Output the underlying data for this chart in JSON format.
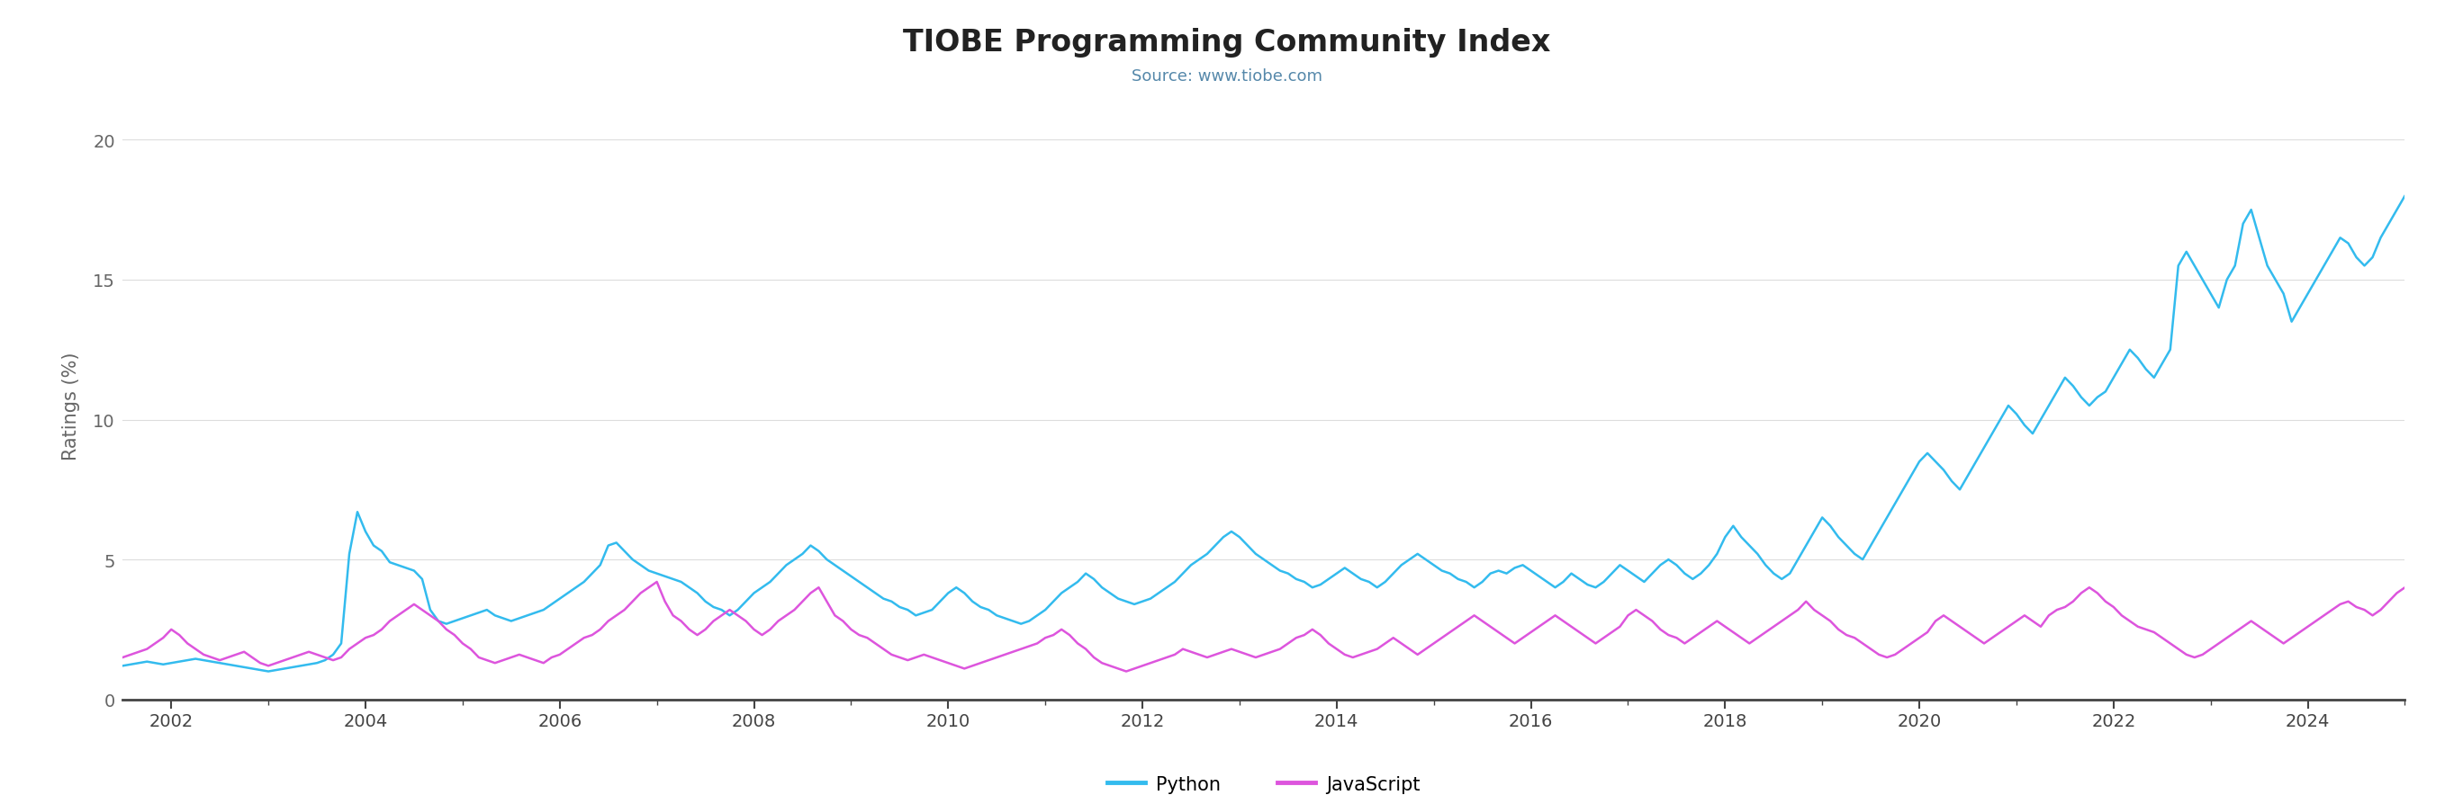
{
  "title": "TIOBE Programming Community Index",
  "subtitle": "Source: www.tiobe.com",
  "ylabel": "Ratings (%)",
  "title_color": "#222222",
  "subtitle_color": "#5588aa",
  "python_color": "#33bbee",
  "javascript_color": "#dd55dd",
  "background_color": "#ffffff",
  "grid_color": "#dddddd",
  "ylim": [
    0,
    21
  ],
  "yticks": [
    0,
    5,
    10,
    15,
    20
  ],
  "start_year": 2001.5,
  "end_year": 2024.75,
  "python_data": [
    1.2,
    1.25,
    1.3,
    1.35,
    1.3,
    1.25,
    1.3,
    1.35,
    1.4,
    1.45,
    1.4,
    1.35,
    1.3,
    1.25,
    1.2,
    1.15,
    1.1,
    1.05,
    1.0,
    1.05,
    1.1,
    1.15,
    1.2,
    1.25,
    1.3,
    1.4,
    1.6,
    2.0,
    5.2,
    6.7,
    6.0,
    5.5,
    5.3,
    4.9,
    4.8,
    4.7,
    4.6,
    4.3,
    3.2,
    2.8,
    2.7,
    2.8,
    2.9,
    3.0,
    3.1,
    3.2,
    3.0,
    2.9,
    2.8,
    2.9,
    3.0,
    3.1,
    3.2,
    3.4,
    3.6,
    3.8,
    4.0,
    4.2,
    4.5,
    4.8,
    5.5,
    5.6,
    5.3,
    5.0,
    4.8,
    4.6,
    4.5,
    4.4,
    4.3,
    4.2,
    4.0,
    3.8,
    3.5,
    3.3,
    3.2,
    3.0,
    3.2,
    3.5,
    3.8,
    4.0,
    4.2,
    4.5,
    4.8,
    5.0,
    5.2,
    5.5,
    5.3,
    5.0,
    4.8,
    4.6,
    4.4,
    4.2,
    4.0,
    3.8,
    3.6,
    3.5,
    3.3,
    3.2,
    3.0,
    3.1,
    3.2,
    3.5,
    3.8,
    4.0,
    3.8,
    3.5,
    3.3,
    3.2,
    3.0,
    2.9,
    2.8,
    2.7,
    2.8,
    3.0,
    3.2,
    3.5,
    3.8,
    4.0,
    4.2,
    4.5,
    4.3,
    4.0,
    3.8,
    3.6,
    3.5,
    3.4,
    3.5,
    3.6,
    3.8,
    4.0,
    4.2,
    4.5,
    4.8,
    5.0,
    5.2,
    5.5,
    5.8,
    6.0,
    5.8,
    5.5,
    5.2,
    5.0,
    4.8,
    4.6,
    4.5,
    4.3,
    4.2,
    4.0,
    4.1,
    4.3,
    4.5,
    4.7,
    4.5,
    4.3,
    4.2,
    4.0,
    4.2,
    4.5,
    4.8,
    5.0,
    5.2,
    5.0,
    4.8,
    4.6,
    4.5,
    4.3,
    4.2,
    4.0,
    4.2,
    4.5,
    4.6,
    4.5,
    4.7,
    4.8,
    4.6,
    4.4,
    4.2,
    4.0,
    4.2,
    4.5,
    4.3,
    4.1,
    4.0,
    4.2,
    4.5,
    4.8,
    4.6,
    4.4,
    4.2,
    4.5,
    4.8,
    5.0,
    4.8,
    4.5,
    4.3,
    4.5,
    4.8,
    5.2,
    5.8,
    6.2,
    5.8,
    5.5,
    5.2,
    4.8,
    4.5,
    4.3,
    4.5,
    5.0,
    5.5,
    6.0,
    6.5,
    6.2,
    5.8,
    5.5,
    5.2,
    5.0,
    5.5,
    6.0,
    6.5,
    7.0,
    7.5,
    8.0,
    8.5,
    8.8,
    8.5,
    8.2,
    7.8,
    7.5,
    8.0,
    8.5,
    9.0,
    9.5,
    10.0,
    10.5,
    10.2,
    9.8,
    9.5,
    10.0,
    10.5,
    11.0,
    11.5,
    11.2,
    10.8,
    10.5,
    10.8,
    11.0,
    11.5,
    12.0,
    12.5,
    12.2,
    11.8,
    11.5,
    12.0,
    12.5,
    15.5,
    16.0,
    15.5,
    15.0,
    14.5,
    14.0,
    15.0,
    15.5,
    17.0,
    17.5,
    16.5,
    15.5,
    15.0,
    14.5,
    13.5,
    14.0,
    14.5,
    15.0,
    15.5,
    16.0,
    16.5,
    16.3,
    15.8,
    15.5,
    15.8,
    16.5,
    17.0,
    17.5,
    18.0,
    18.3
  ],
  "javascript_data": [
    1.5,
    1.6,
    1.7,
    1.8,
    2.0,
    2.2,
    2.5,
    2.3,
    2.0,
    1.8,
    1.6,
    1.5,
    1.4,
    1.5,
    1.6,
    1.7,
    1.5,
    1.3,
    1.2,
    1.3,
    1.4,
    1.5,
    1.6,
    1.7,
    1.6,
    1.5,
    1.4,
    1.5,
    1.8,
    2.0,
    2.2,
    2.3,
    2.5,
    2.8,
    3.0,
    3.2,
    3.4,
    3.2,
    3.0,
    2.8,
    2.5,
    2.3,
    2.0,
    1.8,
    1.5,
    1.4,
    1.3,
    1.4,
    1.5,
    1.6,
    1.5,
    1.4,
    1.3,
    1.5,
    1.6,
    1.8,
    2.0,
    2.2,
    2.3,
    2.5,
    2.8,
    3.0,
    3.2,
    3.5,
    3.8,
    4.0,
    4.2,
    3.5,
    3.0,
    2.8,
    2.5,
    2.3,
    2.5,
    2.8,
    3.0,
    3.2,
    3.0,
    2.8,
    2.5,
    2.3,
    2.5,
    2.8,
    3.0,
    3.2,
    3.5,
    3.8,
    4.0,
    3.5,
    3.0,
    2.8,
    2.5,
    2.3,
    2.2,
    2.0,
    1.8,
    1.6,
    1.5,
    1.4,
    1.5,
    1.6,
    1.5,
    1.4,
    1.3,
    1.2,
    1.1,
    1.2,
    1.3,
    1.4,
    1.5,
    1.6,
    1.7,
    1.8,
    1.9,
    2.0,
    2.2,
    2.3,
    2.5,
    2.3,
    2.0,
    1.8,
    1.5,
    1.3,
    1.2,
    1.1,
    1.0,
    1.1,
    1.2,
    1.3,
    1.4,
    1.5,
    1.6,
    1.8,
    1.7,
    1.6,
    1.5,
    1.6,
    1.7,
    1.8,
    1.7,
    1.6,
    1.5,
    1.6,
    1.7,
    1.8,
    2.0,
    2.2,
    2.3,
    2.5,
    2.3,
    2.0,
    1.8,
    1.6,
    1.5,
    1.6,
    1.7,
    1.8,
    2.0,
    2.2,
    2.0,
    1.8,
    1.6,
    1.8,
    2.0,
    2.2,
    2.4,
    2.6,
    2.8,
    3.0,
    2.8,
    2.6,
    2.4,
    2.2,
    2.0,
    2.2,
    2.4,
    2.6,
    2.8,
    3.0,
    2.8,
    2.6,
    2.4,
    2.2,
    2.0,
    2.2,
    2.4,
    2.6,
    3.0,
    3.2,
    3.0,
    2.8,
    2.5,
    2.3,
    2.2,
    2.0,
    2.2,
    2.4,
    2.6,
    2.8,
    2.6,
    2.4,
    2.2,
    2.0,
    2.2,
    2.4,
    2.6,
    2.8,
    3.0,
    3.2,
    3.5,
    3.2,
    3.0,
    2.8,
    2.5,
    2.3,
    2.2,
    2.0,
    1.8,
    1.6,
    1.5,
    1.6,
    1.8,
    2.0,
    2.2,
    2.4,
    2.8,
    3.0,
    2.8,
    2.6,
    2.4,
    2.2,
    2.0,
    2.2,
    2.4,
    2.6,
    2.8,
    3.0,
    2.8,
    2.6,
    3.0,
    3.2,
    3.3,
    3.5,
    3.8,
    4.0,
    3.8,
    3.5,
    3.3,
    3.0,
    2.8,
    2.6,
    2.5,
    2.4,
    2.2,
    2.0,
    1.8,
    1.6,
    1.5,
    1.6,
    1.8,
    2.0,
    2.2,
    2.4,
    2.6,
    2.8,
    2.6,
    2.4,
    2.2,
    2.0,
    2.2,
    2.4,
    2.6,
    2.8,
    3.0,
    3.2,
    3.4,
    3.5,
    3.3,
    3.2,
    3.0,
    3.2,
    3.5,
    3.8,
    4.0,
    3.8
  ]
}
